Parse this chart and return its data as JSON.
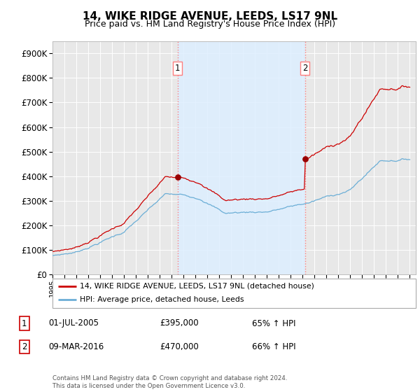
{
  "title": "14, WIKE RIDGE AVENUE, LEEDS, LS17 9NL",
  "subtitle": "Price paid vs. HM Land Registry's House Price Index (HPI)",
  "legend_line1": "14, WIKE RIDGE AVENUE, LEEDS, LS17 9NL (detached house)",
  "legend_line2": "HPI: Average price, detached house, Leeds",
  "sale1_date": "01-JUL-2005",
  "sale1_price": "£395,000",
  "sale1_pct": "65% ↑ HPI",
  "sale1_year": 2005.5,
  "sale1_val": 395000,
  "sale2_date": "09-MAR-2016",
  "sale2_price": "£470,000",
  "sale2_pct": "66% ↑ HPI",
  "sale2_year": 2016.2,
  "sale2_val": 470000,
  "footer": "Contains HM Land Registry data © Crown copyright and database right 2024.\nThis data is licensed under the Open Government Licence v3.0.",
  "ylim": [
    0,
    950000
  ],
  "yticks": [
    0,
    100000,
    200000,
    300000,
    400000,
    500000,
    600000,
    700000,
    800000,
    900000
  ],
  "hpi_color": "#6baed6",
  "price_color": "#cc0000",
  "vline_color": "#ff8080",
  "dot_color": "#990000",
  "shade_color": "#ddeeff",
  "background_color": "#ffffff",
  "plot_bg_color": "#e8e8e8",
  "grid_color": "#ffffff",
  "xmin": 1995,
  "xmax": 2025.5
}
